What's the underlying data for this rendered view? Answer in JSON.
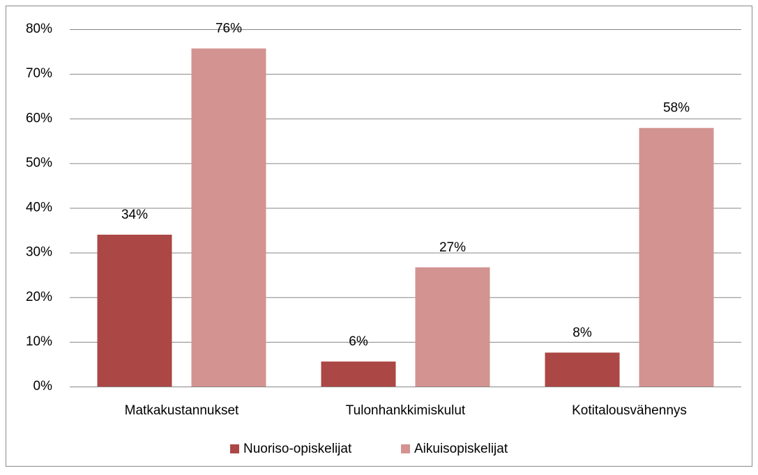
{
  "chart_data": {
    "type": "bar",
    "categories": [
      "Matkakustannukset",
      "Tulonhankkimiskulut",
      "Kotitalousvähennys"
    ],
    "series": [
      {
        "name": "Nuoriso-opiskelijat",
        "color": "#ab4744",
        "values": [
          34,
          5.6,
          7.6
        ],
        "value_labels": [
          "34%",
          "6%",
          "8%"
        ]
      },
      {
        "name": "Aikuisopiskelijat",
        "color": "#d39391",
        "values": [
          75.7,
          26.7,
          57.9
        ],
        "value_labels": [
          "76%",
          "27%",
          "58%"
        ]
      }
    ],
    "ylim": [
      0,
      80
    ],
    "yticks": [
      {
        "value": 0,
        "label": "0%"
      },
      {
        "value": 10,
        "label": "10%"
      },
      {
        "value": 20,
        "label": "20%"
      },
      {
        "value": 30,
        "label": "30%"
      },
      {
        "value": 40,
        "label": "40%"
      },
      {
        "value": 50,
        "label": "50%"
      },
      {
        "value": 60,
        "label": "60%"
      },
      {
        "value": 70,
        "label": "70%"
      },
      {
        "value": 80,
        "label": "80%"
      }
    ],
    "grid": true,
    "legend": "bottom"
  }
}
